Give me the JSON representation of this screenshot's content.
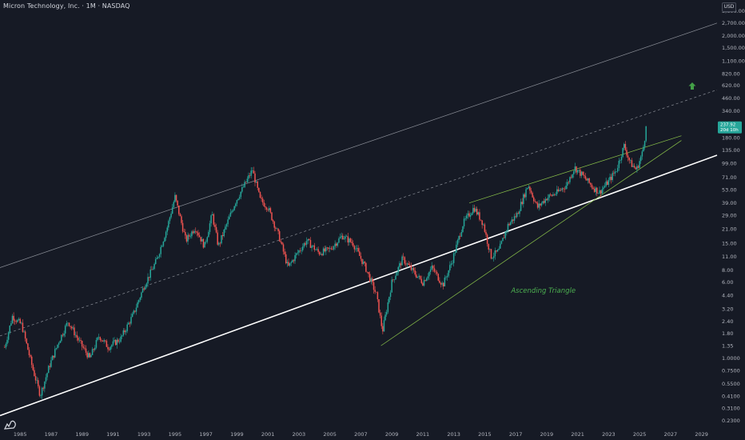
{
  "header": {
    "title": "Micron Technology, Inc. · 1M · NASDAQ",
    "currency": "USD"
  },
  "colors": {
    "background": "#161a25",
    "up": "#26a69a",
    "down": "#ef5350",
    "channel": "#b2b5be",
    "support": "#ffffff",
    "triangle": "#8bc34a",
    "badge": "#26a69a"
  },
  "icons": {
    "up_arrow": "up-arrow-icon",
    "logo": "tradingview-logo-icon"
  },
  "chart_data": {
    "type": "candlestick",
    "title": "Micron Technology, Inc. · 1M · NASDAQ",
    "y_scale": "log",
    "ylim": [
      0.23,
      4000
    ],
    "xlim": [
      1984.2,
      2030.5
    ],
    "y_ticks": [
      "3,600.00",
      "2,700.00",
      "2,000.00",
      "1,500.00",
      "1,100.00",
      "820.00",
      "620.00",
      "460.00",
      "340.00",
      "180.00",
      "135.00",
      "99.00",
      "71.00",
      "53.00",
      "39.00",
      "29.00",
      "21.00",
      "15.00",
      "11.00",
      "8.00",
      "6.00",
      "4.40",
      "3.20",
      "2.40",
      "1.80",
      "1.35",
      "1.0000",
      "0.7500",
      "0.5500",
      "0.4100",
      "0.3100",
      "0.2300"
    ],
    "x_ticks": [
      "1985",
      "1987",
      "1989",
      "1991",
      "1993",
      "1995",
      "1997",
      "1999",
      "2001",
      "2003",
      "2005",
      "2007",
      "2009",
      "2011",
      "2013",
      "2015",
      "2017",
      "2019",
      "2021",
      "2023",
      "2025",
      "2027",
      "2029"
    ],
    "price_anchors": [
      [
        1984.5,
        1.3
      ],
      [
        1985.0,
        2.7
      ],
      [
        1985.6,
        2.2
      ],
      [
        1986.3,
        0.8
      ],
      [
        1986.8,
        0.42
      ],
      [
        1987.4,
        0.85
      ],
      [
        1988.0,
        1.5
      ],
      [
        1988.6,
        2.4
      ],
      [
        1989.3,
        1.5
      ],
      [
        1990.0,
        1.0
      ],
      [
        1990.6,
        1.7
      ],
      [
        1991.2,
        1.3
      ],
      [
        1992.0,
        1.6
      ],
      [
        1992.8,
        2.8
      ],
      [
        1993.5,
        5.5
      ],
      [
        1994.3,
        10.0
      ],
      [
        1995.0,
        22.0
      ],
      [
        1995.5,
        45.0
      ],
      [
        1996.2,
        16.0
      ],
      [
        1996.8,
        22.0
      ],
      [
        1997.4,
        14.0
      ],
      [
        1997.9,
        30.0
      ],
      [
        1998.3,
        14.0
      ],
      [
        1998.9,
        25.0
      ],
      [
        1999.4,
        40.0
      ],
      [
        2000.0,
        60.0
      ],
      [
        2000.5,
        85.0
      ],
      [
        2001.0,
        42.0
      ],
      [
        2001.5,
        35.0
      ],
      [
        2002.2,
        18.0
      ],
      [
        2002.8,
        8.5
      ],
      [
        2003.4,
        12.0
      ],
      [
        2004.0,
        16.0
      ],
      [
        2004.8,
        12.0
      ],
      [
        2005.5,
        13.0
      ],
      [
        2006.3,
        18.0
      ],
      [
        2007.0,
        15.0
      ],
      [
        2007.8,
        8.5
      ],
      [
        2008.5,
        4.5
      ],
      [
        2008.9,
        1.9
      ],
      [
        2009.5,
        6.0
      ],
      [
        2010.2,
        10.5
      ],
      [
        2010.8,
        8.0
      ],
      [
        2011.5,
        6.0
      ],
      [
        2012.1,
        8.5
      ],
      [
        2012.8,
        5.6
      ],
      [
        2013.4,
        10.0
      ],
      [
        2014.1,
        24.0
      ],
      [
        2014.8,
        35.0
      ],
      [
        2015.4,
        24.0
      ],
      [
        2015.9,
        11.0
      ],
      [
        2016.4,
        12.5
      ],
      [
        2017.0,
        23.0
      ],
      [
        2017.6,
        30.0
      ],
      [
        2018.3,
        60.0
      ],
      [
        2018.9,
        35.0
      ],
      [
        2019.5,
        44.0
      ],
      [
        2020.2,
        50.0
      ],
      [
        2020.8,
        60.0
      ],
      [
        2021.3,
        90.0
      ],
      [
        2021.9,
        72.0
      ],
      [
        2022.5,
        56.0
      ],
      [
        2022.9,
        50.0
      ],
      [
        2023.5,
        65.0
      ],
      [
        2024.0,
        85.0
      ],
      [
        2024.5,
        150.0
      ],
      [
        2024.9,
        100.0
      ],
      [
        2025.3,
        85.0
      ],
      [
        2025.7,
        130.0
      ],
      [
        2025.95,
        237.92
      ]
    ],
    "trendlines": [
      {
        "name": "upper-channel",
        "style": "solid",
        "points": [
          [
            1984.2,
            8.5
          ],
          [
            2030.5,
            2700.0
          ]
        ]
      },
      {
        "name": "mid-channel",
        "style": "dashed",
        "points": [
          [
            1984.2,
            1.7
          ],
          [
            2030.5,
            560.0
          ]
        ]
      },
      {
        "name": "support",
        "style": "solid-bold",
        "points": [
          [
            1984.2,
            0.26
          ],
          [
            2030.5,
            120.0
          ]
        ]
      },
      {
        "name": "triangle-upper",
        "style": "solid",
        "points": [
          [
            2014.5,
            39.0
          ],
          [
            2028.2,
            190.0
          ]
        ]
      },
      {
        "name": "triangle-lower",
        "style": "solid",
        "points": [
          [
            2008.8,
            1.35
          ],
          [
            2028.2,
            170.0
          ]
        ]
      }
    ],
    "annotations": [
      {
        "text": "Ascending Triangle",
        "x": 2017.2,
        "y": 4.7
      }
    ],
    "last_price": {
      "price": "237.92",
      "countdown": "20d 10h"
    }
  }
}
